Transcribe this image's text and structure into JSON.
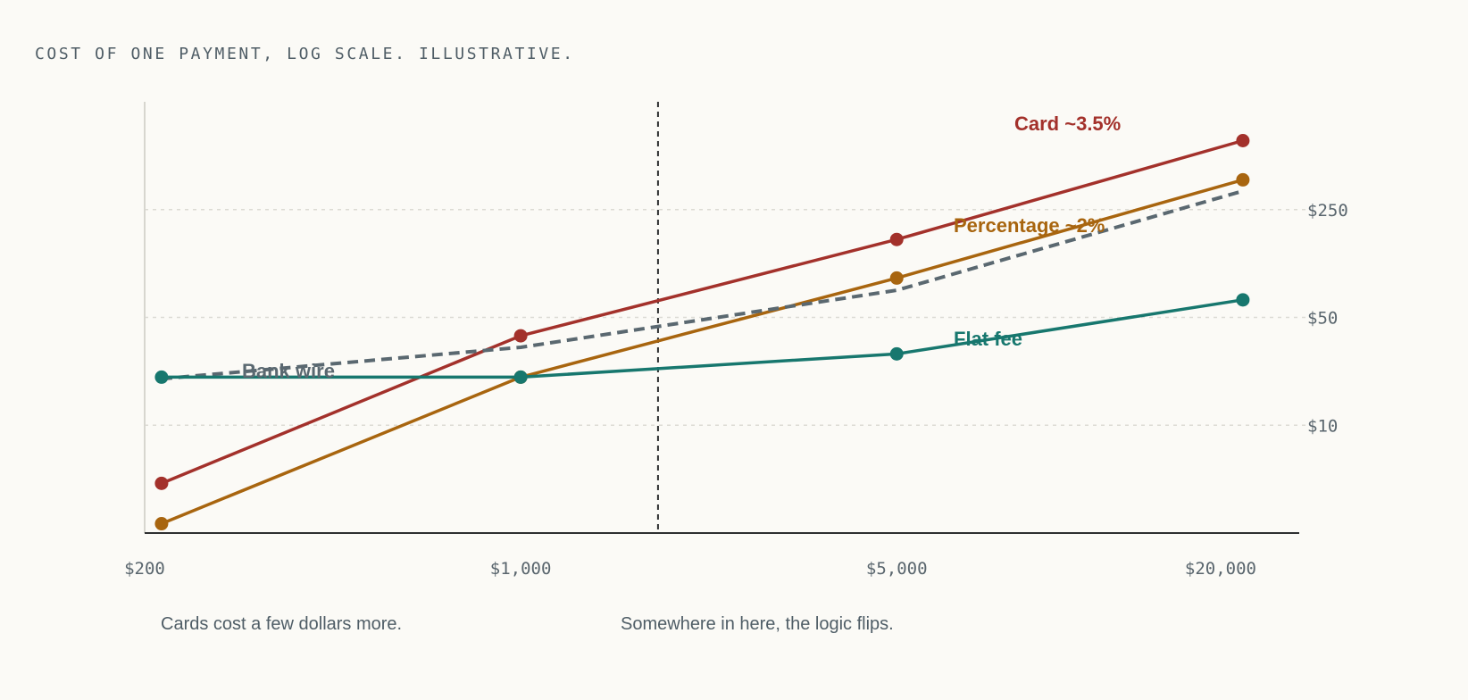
{
  "caption": "COST OF ONE PAYMENT, LOG SCALE. ILLUSTRATIVE.",
  "chart_data": {
    "type": "line",
    "x_scale": "log",
    "y_scale": "log",
    "xlim": [
      200,
      28000
    ],
    "ylim": [
      2,
      1250
    ],
    "x_ticks": [
      {
        "value": 200,
        "label": "$200"
      },
      {
        "value": 1000,
        "label": "$1,000"
      },
      {
        "value": 5000,
        "label": "$5,000"
      },
      {
        "value": 20000,
        "label": "$20,000"
      }
    ],
    "y_ticks": [
      {
        "value": 10,
        "label": "$10"
      },
      {
        "value": 50,
        "label": "$50"
      },
      {
        "value": 250,
        "label": "$250"
      }
    ],
    "grid": "horizontal dotted",
    "series": [
      {
        "name": "Card ~3.5%",
        "color": "#a3312b",
        "style": "solid",
        "markers": true,
        "x": [
          215,
          1000,
          5000,
          22000
        ],
        "y": [
          4.2,
          38,
          160,
          700
        ]
      },
      {
        "name": "Percentage ~2%",
        "color": "#a8650f",
        "style": "solid",
        "markers": true,
        "x": [
          215,
          1000,
          5000,
          22000
        ],
        "y": [
          2.3,
          20.5,
          90,
          390
        ]
      },
      {
        "name": "Bank wire",
        "color": "#5a6870",
        "style": "dashed",
        "markers": false,
        "x": [
          215,
          1000,
          5000,
          22000
        ],
        "y": [
          20,
          32,
          75,
          330
        ]
      },
      {
        "name": "Flat fee",
        "color": "#17776e",
        "style": "solid",
        "markers": true,
        "x": [
          215,
          1000,
          5000,
          22000
        ],
        "y": [
          20.5,
          20.5,
          29,
          65
        ]
      }
    ],
    "marker_line_x": 1800,
    "annotations": [
      {
        "text": "Cards cost a few dollars more."
      },
      {
        "text": "Somewhere in here, the logic flips."
      }
    ]
  }
}
